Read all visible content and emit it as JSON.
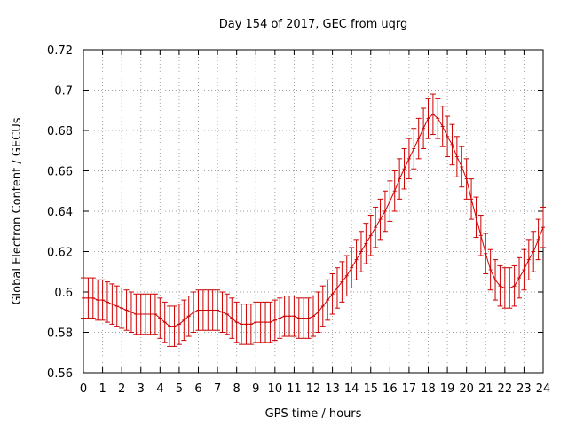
{
  "chart_data": {
    "type": "line",
    "title": "Day 154 of 2017, GEC from uqrg",
    "xlabel": "GPS time / hours",
    "ylabel": "Global Electron Content / GECUs",
    "xlim": [
      0,
      24
    ],
    "ylim": [
      0.56,
      0.72
    ],
    "x_ticks": [
      0,
      1,
      2,
      3,
      4,
      5,
      6,
      7,
      8,
      9,
      10,
      11,
      12,
      13,
      14,
      15,
      16,
      17,
      18,
      19,
      20,
      21,
      22,
      23,
      24
    ],
    "y_ticks": [
      0.56,
      0.58,
      0.6,
      0.62,
      0.64,
      0.66,
      0.68,
      0.7,
      0.72
    ],
    "y_tick_labels": [
      "0.56",
      "0.58",
      "0.6",
      "0.62",
      "0.64",
      "0.66",
      "0.68",
      "0.7",
      "0.72"
    ],
    "grid": true,
    "series_color": "#cc0000",
    "error": 0.01,
    "series": [
      {
        "x": [
          0,
          0.25,
          0.5,
          0.75,
          1,
          1.25,
          1.5,
          1.75,
          2,
          2.25,
          2.5,
          2.75,
          3,
          3.25,
          3.5,
          3.75,
          4,
          4.25,
          4.5,
          4.75,
          5,
          5.25,
          5.5,
          5.75,
          6,
          6.25,
          6.5,
          6.75,
          7,
          7.25,
          7.5,
          7.75,
          8,
          8.25,
          8.5,
          8.75,
          9,
          9.25,
          9.5,
          9.75,
          10,
          10.25,
          10.5,
          10.75,
          11,
          11.25,
          11.5,
          11.75,
          12,
          12.25,
          12.5,
          12.75,
          13,
          13.25,
          13.5,
          13.75,
          14,
          14.25,
          14.5,
          14.75,
          15,
          15.25,
          15.5,
          15.75,
          16,
          16.25,
          16.5,
          16.75,
          17,
          17.25,
          17.5,
          17.75,
          18,
          18.25,
          18.5,
          18.75,
          19,
          19.25,
          19.5,
          19.75,
          20,
          20.25,
          20.5,
          20.75,
          21,
          21.25,
          21.5,
          21.75,
          22,
          22.25,
          22.5,
          22.75,
          23,
          23.25,
          23.5,
          23.75,
          24
        ],
        "y": [
          0.597,
          0.597,
          0.597,
          0.596,
          0.596,
          0.595,
          0.594,
          0.593,
          0.592,
          0.591,
          0.59,
          0.589,
          0.589,
          0.589,
          0.589,
          0.589,
          0.587,
          0.585,
          0.583,
          0.583,
          0.584,
          0.586,
          0.588,
          0.59,
          0.591,
          0.591,
          0.591,
          0.591,
          0.591,
          0.59,
          0.589,
          0.587,
          0.585,
          0.584,
          0.584,
          0.584,
          0.585,
          0.585,
          0.585,
          0.585,
          0.586,
          0.587,
          0.588,
          0.588,
          0.588,
          0.587,
          0.587,
          0.587,
          0.588,
          0.59,
          0.593,
          0.596,
          0.599,
          0.602,
          0.605,
          0.608,
          0.612,
          0.616,
          0.62,
          0.624,
          0.628,
          0.632,
          0.636,
          0.64,
          0.645,
          0.65,
          0.656,
          0.661,
          0.666,
          0.671,
          0.676,
          0.681,
          0.686,
          0.688,
          0.686,
          0.682,
          0.677,
          0.673,
          0.667,
          0.662,
          0.656,
          0.646,
          0.637,
          0.628,
          0.619,
          0.611,
          0.606,
          0.603,
          0.602,
          0.602,
          0.603,
          0.607,
          0.611,
          0.616,
          0.62,
          0.626,
          0.632
        ]
      }
    ]
  }
}
